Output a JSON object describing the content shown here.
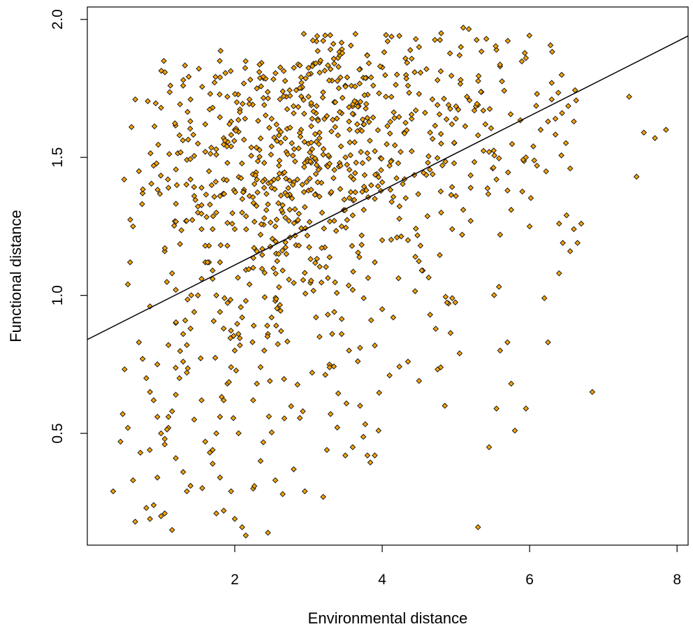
{
  "chart_data": {
    "type": "scatter",
    "title": "",
    "xlabel": "Environmental distance",
    "ylabel": "Functional distance",
    "xlim": [
      0.0,
      8.15
    ],
    "ylim": [
      0.095,
      2.045
    ],
    "x_ticks": [
      2,
      4,
      6,
      8
    ],
    "y_ticks": [
      0.5,
      1.0,
      1.5,
      2.0
    ],
    "x_tick_labels": [
      "2",
      "4",
      "6",
      "8"
    ],
    "y_tick_labels": [
      "0.5",
      "1.0",
      "1.5",
      "2.0"
    ],
    "grid": false,
    "legend": "none",
    "point_color": "#ffa500",
    "point_edge_color": "#1a1a1a",
    "point_shape": "diamond",
    "point_count": 1000,
    "regression_line": {
      "x": [
        0.0,
        8.15
      ],
      "y": [
        0.84,
        1.94
      ]
    },
    "series": [
      {
        "note_free_cluster_data": true,
        "points": [
          [
            0.35,
            0.29
          ],
          [
            0.45,
            0.47
          ],
          [
            0.48,
            0.57
          ],
          [
            0.55,
            0.52
          ],
          [
            0.62,
            0.33
          ],
          [
            0.65,
            0.18
          ],
          [
            0.72,
            0.43
          ],
          [
            0.8,
            0.23
          ],
          [
            0.85,
            0.19
          ],
          [
            0.9,
            0.24
          ],
          [
            0.95,
            0.34
          ],
          [
            1.0,
            0.2
          ],
          [
            1.05,
            0.21
          ],
          [
            1.15,
            0.15
          ],
          [
            1.2,
            0.41
          ],
          [
            1.3,
            0.36
          ],
          [
            1.35,
            0.29
          ],
          [
            1.4,
            0.31
          ],
          [
            0.5,
            1.42
          ],
          [
            0.6,
            1.61
          ],
          [
            0.65,
            1.71
          ],
          [
            0.7,
            1.45
          ],
          [
            0.75,
            1.37
          ],
          [
            0.62,
            1.25
          ],
          [
            0.55,
            1.04
          ],
          [
            0.58,
            1.12
          ],
          [
            0.85,
            0.96
          ],
          [
            0.9,
            1.47
          ],
          [
            1.0,
            1.68
          ],
          [
            1.1,
            1.39
          ],
          [
            1.05,
            1.16
          ],
          [
            1.15,
            1.08
          ],
          [
            1.25,
            1.58
          ],
          [
            1.3,
            1.76
          ],
          [
            1.2,
            1.02
          ],
          [
            1.4,
            1.71
          ],
          [
            0.7,
            0.83
          ],
          [
            0.75,
            0.77
          ],
          [
            0.8,
            0.7
          ],
          [
            0.85,
            0.65
          ],
          [
            0.9,
            0.62
          ],
          [
            0.95,
            0.56
          ],
          [
            1.0,
            0.5
          ],
          [
            1.05,
            0.48
          ],
          [
            1.1,
            0.56
          ],
          [
            0.95,
            0.75
          ],
          [
            1.1,
            0.82
          ],
          [
            1.2,
            0.9
          ],
          [
            1.3,
            0.86
          ],
          [
            1.35,
            0.72
          ],
          [
            1.45,
            0.55
          ],
          [
            1.55,
            0.62
          ],
          [
            1.6,
            0.47
          ],
          [
            1.7,
            0.39
          ],
          [
            1.75,
            0.21
          ],
          [
            1.8,
            0.34
          ],
          [
            1.85,
            0.22
          ],
          [
            1.95,
            0.29
          ],
          [
            2.0,
            0.19
          ],
          [
            2.1,
            0.16
          ],
          [
            2.15,
            0.13
          ],
          [
            2.25,
            0.3
          ],
          [
            2.35,
            0.4
          ],
          [
            2.45,
            0.14
          ],
          [
            2.55,
            0.33
          ],
          [
            2.65,
            0.28
          ],
          [
            2.8,
            0.37
          ],
          [
            2.95,
            0.29
          ],
          [
            3.2,
            0.27
          ],
          [
            3.25,
            0.44
          ],
          [
            3.05,
            0.72
          ],
          [
            3.15,
            0.85
          ],
          [
            3.3,
            0.57
          ],
          [
            3.5,
            0.42
          ],
          [
            3.6,
            0.45
          ],
          [
            3.7,
            0.6
          ],
          [
            3.8,
            0.42
          ],
          [
            3.9,
            0.42
          ],
          [
            3.95,
            0.51
          ],
          [
            4.1,
            0.71
          ],
          [
            4.35,
            0.76
          ],
          [
            4.5,
            0.69
          ],
          [
            4.85,
            0.6
          ],
          [
            5.05,
            0.79
          ],
          [
            5.3,
            0.16
          ],
          [
            5.45,
            0.45
          ],
          [
            5.55,
            0.59
          ],
          [
            5.75,
            0.68
          ],
          [
            5.8,
            0.51
          ],
          [
            5.95,
            0.59
          ],
          [
            6.85,
            0.65
          ],
          [
            5.6,
            0.8
          ],
          [
            5.7,
            0.83
          ],
          [
            4.65,
            0.93
          ],
          [
            4.95,
            0.99
          ],
          [
            4.0,
            0.95
          ],
          [
            4.15,
            0.92
          ],
          [
            3.85,
            0.91
          ],
          [
            3.7,
            0.81
          ],
          [
            3.55,
            0.8
          ],
          [
            3.45,
            0.86
          ],
          [
            3.35,
            0.94
          ],
          [
            3.6,
            1.02
          ],
          [
            3.75,
            0.99
          ],
          [
            3.9,
            1.12
          ],
          [
            4.0,
            1.2
          ],
          [
            4.2,
            1.21
          ],
          [
            4.35,
            1.2
          ],
          [
            4.45,
            1.14
          ],
          [
            4.55,
            1.09
          ],
          [
            4.8,
            1.3
          ],
          [
            5.0,
            1.36
          ],
          [
            5.1,
            1.31
          ],
          [
            5.2,
            1.27
          ],
          [
            5.6,
            1.22
          ],
          [
            5.75,
            1.31
          ],
          [
            6.0,
            1.25
          ],
          [
            6.2,
            0.99
          ],
          [
            6.25,
            0.83
          ],
          [
            6.4,
            1.08
          ],
          [
            6.45,
            1.19
          ],
          [
            6.55,
            1.16
          ],
          [
            6.6,
            1.24
          ],
          [
            6.65,
            1.19
          ],
          [
            6.7,
            1.26
          ],
          [
            6.5,
            1.29
          ],
          [
            6.4,
            1.26
          ],
          [
            6.1,
            1.47
          ],
          [
            5.95,
            1.5
          ],
          [
            6.05,
            1.54
          ],
          [
            6.15,
            1.6
          ],
          [
            6.25,
            1.63
          ],
          [
            6.3,
            1.77
          ],
          [
            6.35,
            1.64
          ],
          [
            6.6,
            1.63
          ],
          [
            6.55,
            1.46
          ],
          [
            7.35,
            1.72
          ],
          [
            7.45,
            1.43
          ],
          [
            7.55,
            1.59
          ],
          [
            7.7,
            1.57
          ],
          [
            7.85,
            1.6
          ],
          [
            4.5,
            1.9
          ],
          [
            4.8,
            1.95
          ],
          [
            5.1,
            1.97
          ],
          [
            5.05,
            1.87
          ],
          [
            5.55,
            1.89
          ],
          [
            5.6,
            1.83
          ],
          [
            5.95,
            1.86
          ],
          [
            6.1,
            1.73
          ],
          [
            6.3,
            1.71
          ],
          [
            5.4,
            1.62
          ],
          [
            5.3,
            1.58
          ],
          [
            5.25,
            1.67
          ],
          [
            5.45,
            1.52
          ],
          [
            5.5,
            1.46
          ],
          [
            5.55,
            1.42
          ],
          [
            5.7,
            1.38
          ],
          [
            5.2,
            1.39
          ],
          [
            4.95,
            1.24
          ],
          [
            4.8,
            1.55
          ],
          [
            4.65,
            1.59
          ],
          [
            4.5,
            1.73
          ],
          [
            4.4,
            1.64
          ],
          [
            4.3,
            1.59
          ],
          [
            4.25,
            1.52
          ],
          [
            4.1,
            1.47
          ],
          [
            4.0,
            1.41
          ],
          [
            3.9,
            1.35
          ],
          [
            3.75,
            1.31
          ],
          [
            3.6,
            1.29
          ],
          [
            3.45,
            1.25
          ],
          [
            3.3,
            1.37
          ],
          [
            3.25,
            1.47
          ],
          [
            3.4,
            1.58
          ],
          [
            3.55,
            1.63
          ],
          [
            3.65,
            1.7
          ],
          [
            3.5,
            1.76
          ],
          [
            3.35,
            1.84
          ],
          [
            3.4,
            1.86
          ],
          [
            3.7,
            1.82
          ],
          [
            3.85,
            1.79
          ],
          [
            4.05,
            1.72
          ],
          [
            4.2,
            1.8
          ],
          [
            4.35,
            1.76
          ],
          [
            4.6,
            1.82
          ],
          [
            4.75,
            1.78
          ],
          [
            4.9,
            1.69
          ],
          [
            5.0,
            1.64
          ],
          [
            5.15,
            1.72
          ],
          [
            5.3,
            1.69
          ],
          [
            2.9,
            1.79
          ],
          [
            3.0,
            1.72
          ],
          [
            3.05,
            1.64
          ],
          [
            3.15,
            1.57
          ],
          [
            3.2,
            1.51
          ],
          [
            3.1,
            1.44
          ],
          [
            3.0,
            1.38
          ],
          [
            2.95,
            1.32
          ],
          [
            2.85,
            1.27
          ],
          [
            2.75,
            1.21
          ],
          [
            2.7,
            1.15
          ],
          [
            2.65,
            1.09
          ],
          [
            2.6,
            1.03
          ],
          [
            2.55,
            0.98
          ],
          [
            2.5,
            0.92
          ],
          [
            2.45,
            0.86
          ],
          [
            2.4,
            0.8
          ],
          [
            2.35,
            0.74
          ],
          [
            2.3,
            0.68
          ],
          [
            2.25,
            0.62
          ],
          [
            2.8,
            1.41
          ],
          [
            2.7,
            1.52
          ],
          [
            2.6,
            1.47
          ],
          [
            2.5,
            1.39
          ],
          [
            2.45,
            1.33
          ],
          [
            2.4,
            1.28
          ],
          [
            2.35,
            1.22
          ],
          [
            2.3,
            1.16
          ],
          [
            2.25,
            1.1
          ],
          [
            2.2,
            1.04
          ],
          [
            2.15,
            0.98
          ],
          [
            2.1,
            0.92
          ],
          [
            2.05,
            0.86
          ],
          [
            2.0,
            0.8
          ],
          [
            1.95,
            0.74
          ],
          [
            1.9,
            0.68
          ],
          [
            1.85,
            0.62
          ],
          [
            1.8,
            0.56
          ],
          [
            1.75,
            0.5
          ],
          [
            1.7,
            0.44
          ],
          [
            2.0,
            1.6
          ],
          [
            1.95,
            1.54
          ],
          [
            1.9,
            1.48
          ],
          [
            1.85,
            1.42
          ],
          [
            1.8,
            1.36
          ],
          [
            1.75,
            1.3
          ],
          [
            1.7,
            1.24
          ],
          [
            1.65,
            1.18
          ],
          [
            1.6,
            1.12
          ],
          [
            1.55,
            1.06
          ],
          [
            1.5,
            1.0
          ],
          [
            1.45,
            0.94
          ],
          [
            1.4,
            0.88
          ],
          [
            1.35,
            0.82
          ],
          [
            1.3,
            0.76
          ],
          [
            1.25,
            0.7
          ],
          [
            1.2,
            0.64
          ],
          [
            1.15,
            0.58
          ],
          [
            1.1,
            0.52
          ],
          [
            1.05,
            0.46
          ],
          [
            2.2,
            1.71
          ],
          [
            2.3,
            1.75
          ],
          [
            2.4,
            1.69
          ],
          [
            2.5,
            1.64
          ],
          [
            2.6,
            1.58
          ],
          [
            2.7,
            1.72
          ],
          [
            2.8,
            1.66
          ],
          [
            2.9,
            1.6
          ],
          [
            3.0,
            1.55
          ],
          [
            3.1,
            1.49
          ],
          [
            1.5,
            1.55
          ],
          [
            1.6,
            1.62
          ],
          [
            1.7,
            1.68
          ],
          [
            1.8,
            1.79
          ],
          [
            1.9,
            1.72
          ],
          [
            1.55,
            1.39
          ],
          [
            1.65,
            1.45
          ],
          [
            1.75,
            1.51
          ],
          [
            1.85,
            1.57
          ],
          [
            1.95,
            1.63
          ],
          [
            1.4,
            1.42
          ],
          [
            1.45,
            1.36
          ],
          [
            1.5,
            1.3
          ],
          [
            1.55,
            1.24
          ],
          [
            1.6,
            1.18
          ],
          [
            1.65,
            1.12
          ],
          [
            1.7,
            1.06
          ],
          [
            1.75,
            1.0
          ],
          [
            1.8,
            0.94
          ],
          [
            1.85,
            0.88
          ],
          [
            2.55,
            1.25
          ],
          [
            2.65,
            1.3
          ],
          [
            2.75,
            1.36
          ],
          [
            2.85,
            1.42
          ],
          [
            2.95,
            1.48
          ],
          [
            3.05,
            1.53
          ],
          [
            3.15,
            1.59
          ],
          [
            3.25,
            1.65
          ],
          [
            3.35,
            1.7
          ],
          [
            3.45,
            1.66
          ],
          [
            2.1,
            1.3
          ],
          [
            2.2,
            1.36
          ],
          [
            2.3,
            1.42
          ],
          [
            2.4,
            1.48
          ],
          [
            2.5,
            1.54
          ],
          [
            2.6,
            1.6
          ],
          [
            2.0,
            1.24
          ],
          [
            1.9,
            1.18
          ],
          [
            1.8,
            1.12
          ],
          [
            1.7,
            1.09
          ]
        ]
      }
    ]
  }
}
